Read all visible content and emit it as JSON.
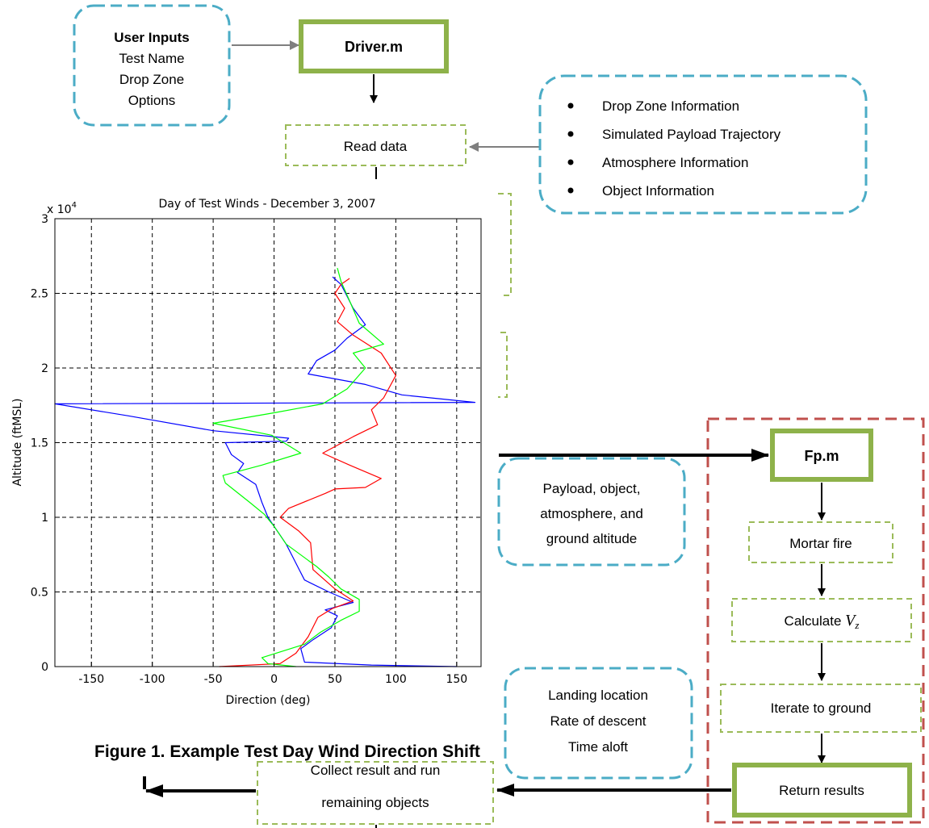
{
  "colors": {
    "teal": "#4bacc6",
    "green_solid": "#8eb24a",
    "green_dash": "#9bbb59",
    "red": "#c0504d",
    "arrow_gray": "#7f7f7f"
  },
  "flow": {
    "user_inputs": {
      "title": "User Inputs",
      "lines": [
        "Test Name",
        "Drop Zone",
        "Options"
      ]
    },
    "driver": "Driver.m",
    "read_data": "Read data",
    "info_bullets": [
      "Drop Zone Information",
      "Simulated Payload Trajectory",
      "Atmosphere Information",
      "Object Information"
    ],
    "fp": "Fp.m",
    "fp_inputs": [
      "Payload, object,",
      "atmosphere, and",
      "ground altitude"
    ],
    "mortar_fire": "Mortar fire",
    "calc_vz": {
      "text": "Calculate ",
      "symbol": "V",
      "subscript": "z"
    },
    "iterate": "Iterate to ground",
    "return_results": "Return results",
    "outputs": [
      "Landing location",
      "Rate of descent",
      "Time aloft"
    ],
    "collect": [
      "Collect result and run",
      "remaining objects"
    ]
  },
  "figure_caption": "Figure 1.  Example Test Day Wind Direction Shift",
  "chart_data": {
    "type": "line",
    "title": "Day of Test Winds - December 3, 2007",
    "xlabel": "Direction (deg)",
    "ylabel": "Altitude (ftMSL)",
    "xlim": [
      -180,
      170
    ],
    "ylim": [
      0,
      30000
    ],
    "xticks": [
      -150,
      -100,
      -50,
      0,
      50,
      100,
      150
    ],
    "yticks": [
      0,
      5000,
      10000,
      15000,
      20000,
      25000,
      30000
    ],
    "ytick_labels": [
      "0",
      "0.5",
      "1",
      "1.5",
      "2",
      "2.5",
      "3"
    ],
    "y_multiplier_label": "x 10",
    "y_multiplier_exponent": "4",
    "grid": true,
    "series": [
      {
        "color": "#0000ff",
        "points": [
          [
            150,
            0
          ],
          [
            80,
            100
          ],
          [
            25,
            300
          ],
          [
            22,
            1200
          ],
          [
            32,
            1800
          ],
          [
            47,
            2600
          ],
          [
            52,
            3400
          ],
          [
            42,
            3800
          ],
          [
            65,
            4300
          ],
          [
            45,
            5000
          ],
          [
            25,
            5800
          ],
          [
            20,
            6600
          ],
          [
            15,
            7400
          ],
          [
            10,
            8200
          ],
          [
            5,
            8800
          ],
          [
            0,
            9400
          ],
          [
            -5,
            10000
          ],
          [
            -10,
            11000
          ],
          [
            -15,
            12200
          ],
          [
            -30,
            13000
          ],
          [
            -25,
            13600
          ],
          [
            -35,
            14200
          ],
          [
            -40,
            15000
          ],
          [
            10,
            15100
          ],
          [
            12,
            15300
          ],
          [
            -50,
            15800
          ],
          [
            -120,
            16800
          ],
          [
            -180,
            17600
          ],
          [
            165,
            17700
          ],
          [
            105,
            18200
          ],
          [
            75,
            18900
          ],
          [
            28,
            19600
          ],
          [
            35,
            20500
          ],
          [
            50,
            21200
          ],
          [
            60,
            22000
          ],
          [
            75,
            22900
          ],
          [
            65,
            24000
          ],
          [
            55,
            25600
          ],
          [
            48,
            26100
          ]
        ]
      },
      {
        "color": "#ff0000",
        "points": [
          [
            -45,
            0
          ],
          [
            5,
            200
          ],
          [
            18,
            900
          ],
          [
            28,
            2000
          ],
          [
            36,
            3300
          ],
          [
            48,
            3900
          ],
          [
            65,
            4400
          ],
          [
            50,
            5200
          ],
          [
            32,
            6500
          ],
          [
            30,
            8300
          ],
          [
            20,
            9100
          ],
          [
            5,
            10000
          ],
          [
            12,
            10600
          ],
          [
            42,
            11600
          ],
          [
            50,
            11900
          ],
          [
            75,
            12000
          ],
          [
            88,
            12600
          ],
          [
            62,
            13500
          ],
          [
            40,
            14300
          ],
          [
            65,
            15400
          ],
          [
            85,
            16200
          ],
          [
            80,
            17200
          ],
          [
            90,
            18000
          ],
          [
            100,
            19500
          ],
          [
            88,
            21000
          ],
          [
            65,
            22200
          ],
          [
            52,
            23100
          ],
          [
            58,
            24000
          ],
          [
            50,
            25000
          ],
          [
            55,
            25600
          ],
          [
            62,
            26000
          ]
        ]
      },
      {
        "color": "#00ff00",
        "points": [
          [
            18,
            0
          ],
          [
            -5,
            200
          ],
          [
            -10,
            600
          ],
          [
            25,
            1500
          ],
          [
            38,
            2300
          ],
          [
            55,
            3100
          ],
          [
            70,
            3700
          ],
          [
            70,
            4500
          ],
          [
            55,
            5200
          ],
          [
            45,
            6000
          ],
          [
            35,
            6700
          ],
          [
            10,
            8200
          ],
          [
            0,
            9400
          ],
          [
            -8,
            10200
          ],
          [
            -20,
            11000
          ],
          [
            -40,
            12300
          ],
          [
            -42,
            12800
          ],
          [
            -10,
            13500
          ],
          [
            22,
            14300
          ],
          [
            -2,
            15500
          ],
          [
            -50,
            16300
          ],
          [
            0,
            17000
          ],
          [
            40,
            17600
          ],
          [
            60,
            18600
          ],
          [
            75,
            20000
          ],
          [
            65,
            21000
          ],
          [
            90,
            21600
          ],
          [
            70,
            23000
          ],
          [
            62,
            24500
          ],
          [
            55,
            25800
          ],
          [
            52,
            26700
          ]
        ]
      }
    ]
  }
}
